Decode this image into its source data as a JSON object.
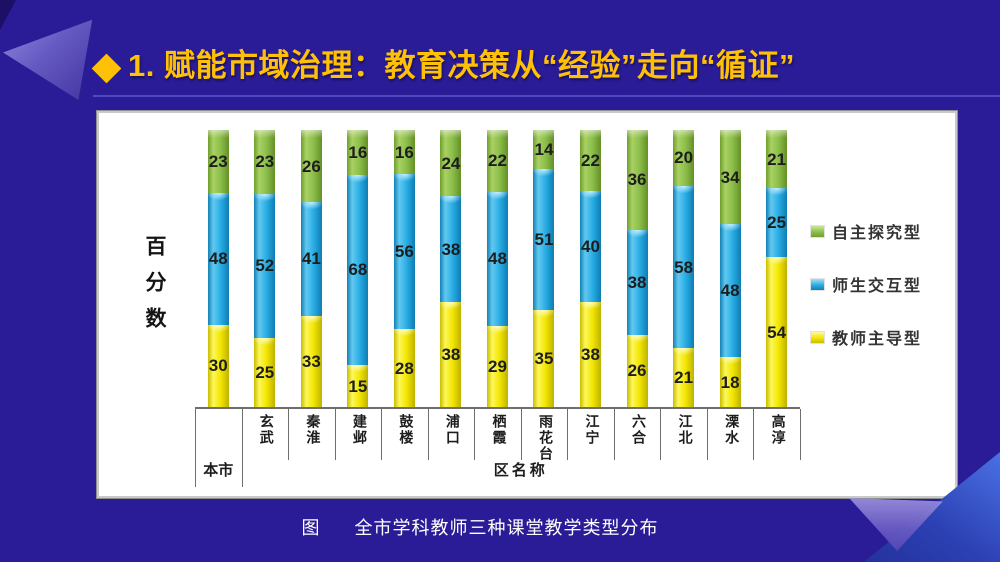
{
  "slide": {
    "title": "1. 赋能市域治理：教育决策从“经验”走向“循证”",
    "title_color": "#ffc008",
    "background_color": "#2a1b96"
  },
  "caption": {
    "figure_label": "图",
    "text": "全市学科教师三种课堂教学类型分布"
  },
  "chart_data": {
    "type": "bar",
    "variant": "100-percent-stacked-column",
    "title": "",
    "xlabel": "区名称",
    "ylabel": "百分数",
    "ylim": [
      0,
      100
    ],
    "grid": false,
    "legend_position": "right",
    "categories": [
      "本市",
      "玄武",
      "秦淮",
      "建邺",
      "鼓楼",
      "浦口",
      "栖霞",
      "雨花台",
      "江宁",
      "六合",
      "江北",
      "溧水",
      "高淳"
    ],
    "series": [
      {
        "key": "yellow",
        "name": "教师主导型",
        "color": "#f2e600",
        "values": [
          30,
          25,
          33,
          15,
          28,
          38,
          29,
          35,
          38,
          26,
          21,
          18,
          54
        ]
      },
      {
        "key": "blue",
        "name": "师生交互型",
        "color": "#29ade4",
        "values": [
          48,
          52,
          41,
          68,
          56,
          38,
          48,
          51,
          40,
          38,
          58,
          48,
          25
        ]
      },
      {
        "key": "green",
        "name": "自主探究型",
        "color": "#8cbe4a",
        "values": [
          23,
          23,
          26,
          16,
          16,
          24,
          22,
          14,
          22,
          36,
          20,
          34,
          21
        ]
      }
    ],
    "legend_order": [
      "green",
      "blue",
      "yellow"
    ]
  }
}
